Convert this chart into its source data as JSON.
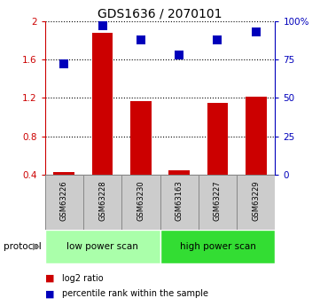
{
  "title": "GDS1636 / 2070101",
  "samples": [
    "GSM63226",
    "GSM63228",
    "GSM63230",
    "GSM63163",
    "GSM63227",
    "GSM63229"
  ],
  "log2_ratio": [
    0.42,
    1.88,
    1.17,
    0.44,
    1.15,
    1.21
  ],
  "percentile_rank": [
    72,
    97,
    88,
    78,
    88,
    93
  ],
  "bar_color": "#cc0000",
  "dot_color": "#0000bb",
  "ylim_left": [
    0.4,
    2.0
  ],
  "ylim_right": [
    0,
    100
  ],
  "yticks_left": [
    0.4,
    0.8,
    1.2,
    1.6,
    2.0
  ],
  "ytick_labels_left": [
    "0.4",
    "0.8",
    "1.2",
    "1.6",
    "2"
  ],
  "yticks_right": [
    0,
    25,
    50,
    75,
    100
  ],
  "ytick_labels_right": [
    "0",
    "25",
    "50",
    "75",
    "100%"
  ],
  "groups": [
    {
      "label": "low power scan",
      "start": 0,
      "end": 3,
      "color": "#aaffaa"
    },
    {
      "label": "high power scan",
      "start": 3,
      "end": 6,
      "color": "#33dd33"
    }
  ],
  "protocol_label": "protocol",
  "legend_items": [
    {
      "color": "#cc0000",
      "label": "log2 ratio"
    },
    {
      "color": "#0000bb",
      "label": "percentile rank within the sample"
    }
  ],
  "bar_width": 0.55,
  "dot_size": 45,
  "left_axis_color": "#cc0000",
  "right_axis_color": "#0000bb",
  "sample_box_color": "#cccccc",
  "sample_box_edge": "#888888"
}
